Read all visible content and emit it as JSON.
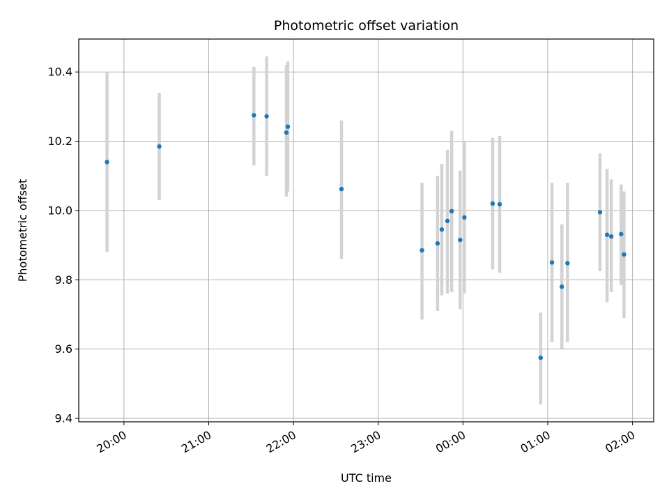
{
  "chart_data": {
    "type": "scatter",
    "title": "Photometric offset variation",
    "xlabel": "UTC time",
    "ylabel": "Photometric offset",
    "x_axis": "time",
    "xlim": [
      "19:28",
      "02:15"
    ],
    "ylim": [
      9.39,
      10.495
    ],
    "x_ticks": [
      "20:00",
      "21:00",
      "22:00",
      "23:00",
      "00:00",
      "01:00",
      "02:00"
    ],
    "y_ticks": [
      "9.4",
      "9.6",
      "9.8",
      "10.0",
      "10.2",
      "10.4"
    ],
    "grid": true,
    "legend": "none",
    "colors": {
      "point": "#1f77b4",
      "errorbar": "#d3d3d3",
      "grid": "#b0b0b0"
    },
    "points": [
      {
        "x": "19:48",
        "y": 10.14,
        "ylow": 9.88,
        "yhigh": 10.4
      },
      {
        "x": "20:25",
        "y": 10.185,
        "ylow": 10.03,
        "yhigh": 10.34
      },
      {
        "x": "21:32",
        "y": 10.275,
        "ylow": 10.13,
        "yhigh": 10.415
      },
      {
        "x": "21:41",
        "y": 10.272,
        "ylow": 10.1,
        "yhigh": 10.445
      },
      {
        "x": "21:55",
        "y": 10.225,
        "ylow": 10.04,
        "yhigh": 10.42
      },
      {
        "x": "21:56",
        "y": 10.242,
        "ylow": 10.055,
        "yhigh": 10.43
      },
      {
        "x": "22:34",
        "y": 10.062,
        "ylow": 9.86,
        "yhigh": 10.26
      },
      {
        "x": "23:31",
        "y": 9.885,
        "ylow": 9.685,
        "yhigh": 10.08
      },
      {
        "x": "23:42",
        "y": 9.905,
        "ylow": 9.71,
        "yhigh": 10.1
      },
      {
        "x": "23:45",
        "y": 9.945,
        "ylow": 9.755,
        "yhigh": 10.135
      },
      {
        "x": "23:49",
        "y": 9.97,
        "ylow": 9.76,
        "yhigh": 10.175
      },
      {
        "x": "23:52",
        "y": 9.998,
        "ylow": 9.765,
        "yhigh": 10.23
      },
      {
        "x": "23:58",
        "y": 9.915,
        "ylow": 9.715,
        "yhigh": 10.115
      },
      {
        "x": "00:01",
        "y": 9.98,
        "ylow": 9.76,
        "yhigh": 10.2
      },
      {
        "x": "00:21",
        "y": 10.02,
        "ylow": 9.83,
        "yhigh": 10.21
      },
      {
        "x": "00:26",
        "y": 10.018,
        "ylow": 9.82,
        "yhigh": 10.215
      },
      {
        "x": "00:55",
        "y": 9.575,
        "ylow": 9.44,
        "yhigh": 9.705
      },
      {
        "x": "01:03",
        "y": 9.85,
        "ylow": 9.62,
        "yhigh": 10.08
      },
      {
        "x": "01:10",
        "y": 9.78,
        "ylow": 9.6,
        "yhigh": 9.96
      },
      {
        "x": "01:14",
        "y": 9.848,
        "ylow": 9.62,
        "yhigh": 10.08
      },
      {
        "x": "01:37",
        "y": 9.995,
        "ylow": 9.825,
        "yhigh": 10.165
      },
      {
        "x": "01:42",
        "y": 9.93,
        "ylow": 9.735,
        "yhigh": 10.12
      },
      {
        "x": "01:45",
        "y": 9.925,
        "ylow": 9.765,
        "yhigh": 10.09
      },
      {
        "x": "01:52",
        "y": 9.932,
        "ylow": 9.785,
        "yhigh": 10.075
      },
      {
        "x": "01:54",
        "y": 9.873,
        "ylow": 9.69,
        "yhigh": 10.055
      }
    ]
  }
}
